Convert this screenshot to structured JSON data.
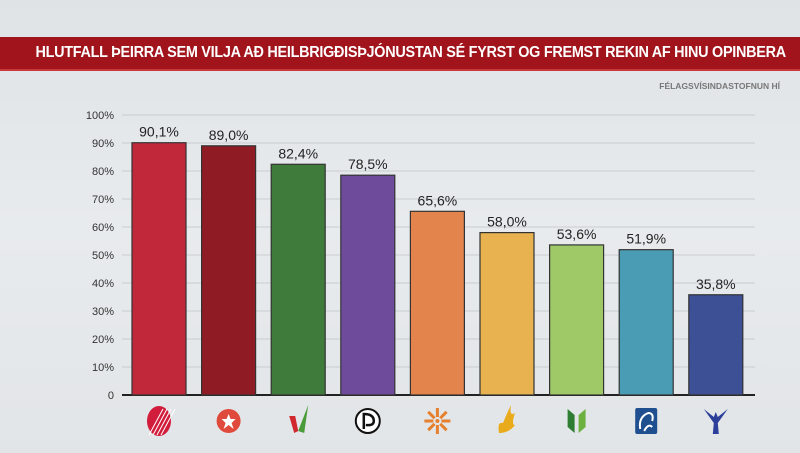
{
  "chart_data": {
    "type": "bar",
    "title": "HLUTFALL ÞEIRRA SEM VILJA AÐ HEILBRIGÐISÞJÓNUSTAN SÉ FYRST OG FREMST REKIN AF HINU OPINBERA",
    "source": "FÉLAGSVÍSINDASTOFNUN HÍ",
    "categories": [
      "party-logo-1",
      "party-logo-2",
      "party-logo-3",
      "party-logo-4",
      "party-logo-5",
      "party-logo-6",
      "party-logo-7",
      "party-logo-8",
      "party-logo-9"
    ],
    "values": [
      90.1,
      89.0,
      82.4,
      78.5,
      65.6,
      58.0,
      53.6,
      51.9,
      35.8
    ],
    "data_labels": [
      "90,1%",
      "89,0%",
      "82,4%",
      "78,5%",
      "65,6%",
      "58,0%",
      "53,6%",
      "51,9%",
      "35,8%"
    ],
    "colors": [
      "#c1283a",
      "#8f1c25",
      "#3f7c3b",
      "#6e4b9b",
      "#e3844d",
      "#e7b24f",
      "#9ec966",
      "#4a9cb4",
      "#3d4f95"
    ],
    "yticks": [
      "0",
      "10%",
      "20%",
      "30%",
      "40%",
      "50%",
      "60%",
      "70%",
      "80%",
      "90%",
      "100%"
    ],
    "ylim": [
      0,
      100
    ],
    "grid": true,
    "xlabel": "",
    "ylabel": ""
  }
}
